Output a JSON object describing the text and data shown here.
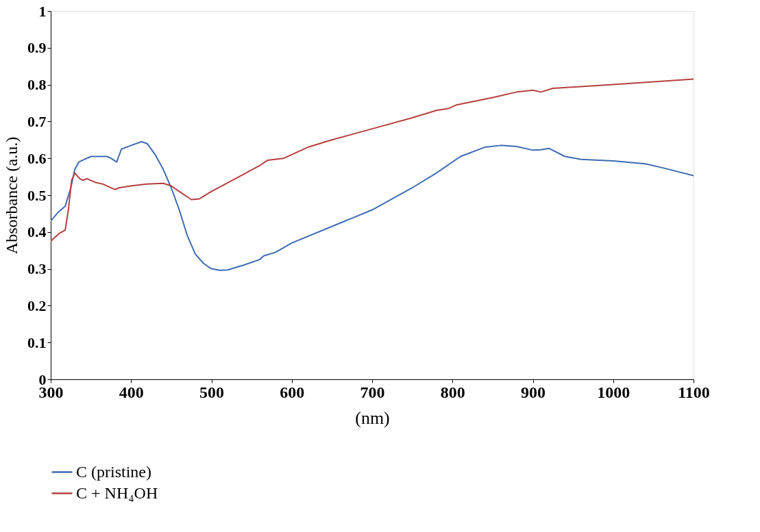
{
  "chart_data": {
    "type": "line",
    "xlabel": "(nm)",
    "ylabel": "Absorbance (a.u.)",
    "xlim": [
      300,
      1100
    ],
    "xticks": [
      300,
      400,
      500,
      600,
      700,
      800,
      900,
      1000,
      1100
    ],
    "ylim": [
      0,
      1
    ],
    "yticks": [
      0,
      0.1,
      0.2,
      0.3,
      0.4,
      0.5,
      0.6,
      0.7,
      0.8,
      0.9,
      1
    ],
    "grid": false,
    "legend": "bottom left",
    "line_style": "solid",
    "marker": "none",
    "series": [
      {
        "name": "C (pristine)",
        "color": "#3d6bb3",
        "x": [
          300,
          310,
          318,
          325,
          330,
          335,
          340,
          350,
          360,
          370,
          375,
          382,
          388,
          400,
          413,
          420,
          430,
          440,
          450,
          460,
          470,
          480,
          490,
          500,
          510,
          520,
          540,
          560,
          565,
          580,
          600,
          650,
          700,
          750,
          780,
          790,
          810,
          840,
          860,
          880,
          900,
          910,
          920,
          940,
          960,
          1000,
          1040,
          1060,
          1100
        ],
        "values": [
          0.43,
          0.455,
          0.47,
          0.52,
          0.57,
          0.59,
          0.595,
          0.605,
          0.605,
          0.605,
          0.6,
          0.59,
          0.625,
          0.635,
          0.645,
          0.64,
          0.61,
          0.57,
          0.52,
          0.46,
          0.39,
          0.34,
          0.315,
          0.3,
          0.296,
          0.297,
          0.31,
          0.325,
          0.335,
          0.345,
          0.37,
          0.415,
          0.46,
          0.52,
          0.56,
          0.575,
          0.605,
          0.63,
          0.635,
          0.632,
          0.622,
          0.623,
          0.627,
          0.605,
          0.597,
          0.593,
          0.585,
          0.575,
          0.553
        ]
      },
      {
        "name": "C + NH₄OH",
        "color": "#b5403f",
        "x": [
          300,
          310,
          318,
          322,
          326,
          330,
          336,
          340,
          345,
          355,
          365,
          380,
          385,
          400,
          420,
          440,
          450,
          460,
          475,
          485,
          500,
          530,
          560,
          570,
          590,
          620,
          650,
          700,
          750,
          780,
          795,
          805,
          850,
          880,
          900,
          910,
          925,
          1000,
          1100
        ],
        "values": [
          0.375,
          0.395,
          0.405,
          0.46,
          0.54,
          0.56,
          0.545,
          0.54,
          0.545,
          0.535,
          0.53,
          0.515,
          0.52,
          0.525,
          0.53,
          0.532,
          0.525,
          0.51,
          0.488,
          0.49,
          0.51,
          0.545,
          0.58,
          0.595,
          0.6,
          0.63,
          0.65,
          0.68,
          0.71,
          0.73,
          0.735,
          0.745,
          0.765,
          0.78,
          0.785,
          0.78,
          0.79,
          0.8,
          0.815
        ]
      }
    ]
  }
}
